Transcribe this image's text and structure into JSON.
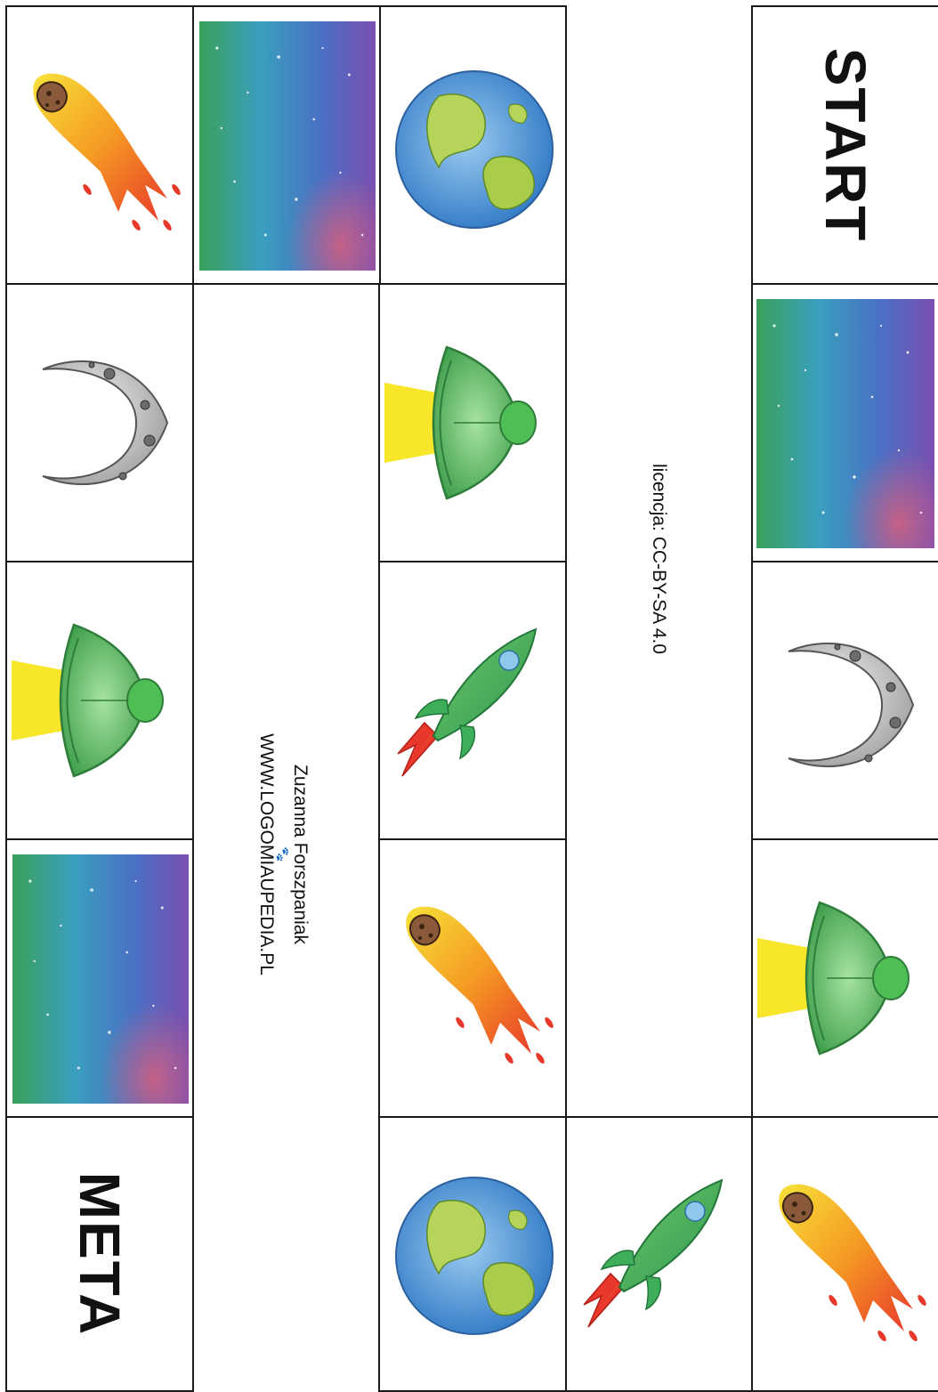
{
  "board": {
    "start_label": "START",
    "finish_label": "META",
    "license": "licencja: CC-BY-SA 4.0",
    "author": "Zuzanna Forszpaniak",
    "website": "WWW.LOGOMIAUPEDIA.PL",
    "paw_glyph": "🐾"
  },
  "path": [
    {
      "step": 1,
      "tile": "start"
    },
    {
      "step": 2,
      "tile": "nebula"
    },
    {
      "step": 3,
      "tile": "moon"
    },
    {
      "step": 4,
      "tile": "ufo"
    },
    {
      "step": 5,
      "tile": "comet"
    },
    {
      "step": 6,
      "tile": "rocket"
    },
    {
      "step": 7,
      "tile": "earth"
    },
    {
      "step": 8,
      "tile": "comet"
    },
    {
      "step": 9,
      "tile": "rocket"
    },
    {
      "step": 10,
      "tile": "ufo"
    },
    {
      "step": 11,
      "tile": "earth"
    },
    {
      "step": 12,
      "tile": "nebula"
    },
    {
      "step": 13,
      "tile": "comet"
    },
    {
      "step": 14,
      "tile": "moon"
    },
    {
      "step": 15,
      "tile": "ufo"
    },
    {
      "step": 16,
      "tile": "nebula"
    },
    {
      "step": 17,
      "tile": "finish"
    }
  ],
  "colors": {
    "border": "#1a1a1a",
    "earth_water": "#5b9bd5",
    "earth_land": "#b7d45a",
    "ufo_green": "#4caf50",
    "beam_yellow": "#f7e629",
    "rocket_green": "#3fae5a",
    "flame_red": "#e8372b",
    "comet_orange": "#f59a23",
    "moon_grey": "#c9c9c9"
  }
}
